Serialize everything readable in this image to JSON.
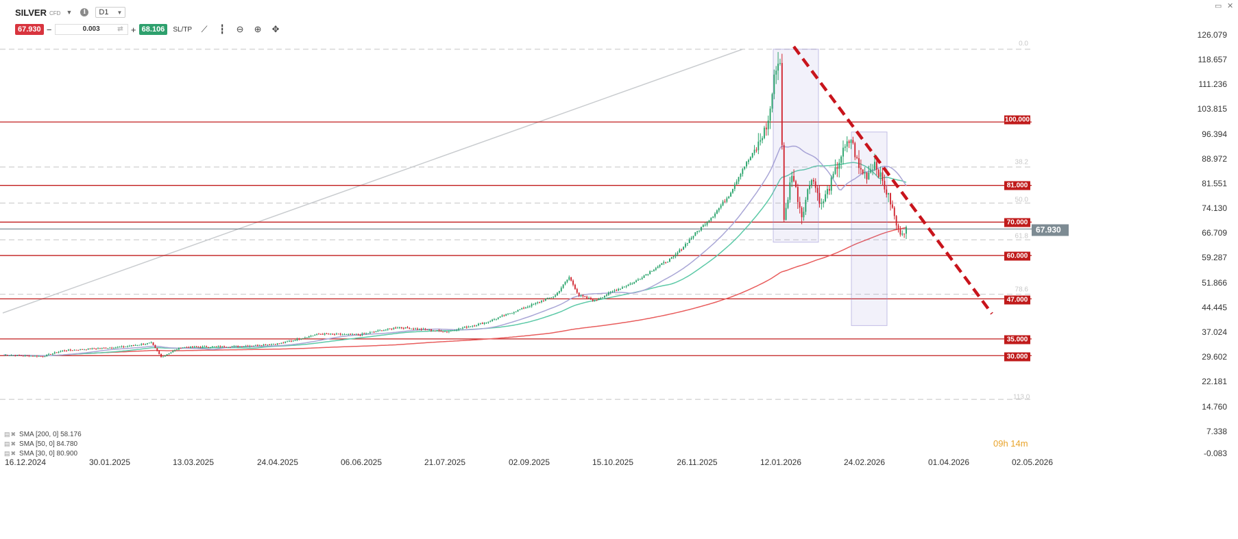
{
  "header": {
    "symbol": "SILVER",
    "symbol_type": "CFD",
    "timeframe": "D1",
    "sell_price": "67.930",
    "quantity": "0.003",
    "buy_price": "68.106",
    "sltp_label": "SL/TP"
  },
  "countdown": "09h 14m",
  "colors": {
    "sma200": "#e85c5c",
    "sma50": "#5cc9a7",
    "sma30": "#a9a6d6",
    "level_line": "#c01b1b",
    "up_candle": "#26a269",
    "down_candle": "#d0242e",
    "trendline": "#c8141c",
    "current_price": "#7d8b93"
  },
  "legend": [
    {
      "label": "SMA [200, 0] 58.176"
    },
    {
      "label": "SMA [50, 0] 84.780"
    },
    {
      "label": "SMA [30, 0] 80.900"
    }
  ],
  "levels": [
    {
      "value": 100,
      "label": "100.000"
    },
    {
      "value": 81,
      "label": "81.000"
    },
    {
      "value": 70,
      "label": "70.000"
    },
    {
      "value": 60,
      "label": "60.000"
    },
    {
      "value": 47,
      "label": "47.000"
    },
    {
      "value": 35,
      "label": "35.000"
    },
    {
      "value": 30,
      "label": "30.000"
    }
  ],
  "fib_levels": [
    {
      "value": 121.8,
      "label": "0.0"
    },
    {
      "value": 86.5,
      "label": "38.2"
    },
    {
      "value": 75.7,
      "label": "50.0"
    },
    {
      "value": 64.7,
      "label": "61.8"
    },
    {
      "value": 48.4,
      "label": "78.6"
    },
    {
      "value": 16.9,
      "label": "113.0"
    }
  ],
  "current_price": {
    "value": 67.93,
    "label": "67.930"
  },
  "chart_data": {
    "type": "candlestick",
    "title": "",
    "ylim": [
      -0.083,
      126.079
    ],
    "y_ticks": [
      "126.079",
      "118.657",
      "111.236",
      "103.815",
      "96.394",
      "88.972",
      "81.551",
      "74.130",
      "66.709",
      "59.287",
      "51.866",
      "44.445",
      "37.024",
      "29.602",
      "22.181",
      "14.760",
      "7.338",
      "-0.083"
    ],
    "x_ticks": [
      "16.12.2024",
      "30.01.2025",
      "13.03.2025",
      "24.04.2025",
      "06.06.2025",
      "21.07.2025",
      "02.09.2025",
      "15.10.2025",
      "26.11.2025",
      "12.01.2026",
      "24.02.2026",
      "01.04.2026",
      "02.05.2026"
    ],
    "series": [
      {
        "name": "SMA [200, 0]",
        "value": 58.176
      },
      {
        "name": "SMA [50, 0]",
        "value": 84.78
      },
      {
        "name": "SMA [30, 0]",
        "value": 80.9
      }
    ],
    "grid": false
  }
}
